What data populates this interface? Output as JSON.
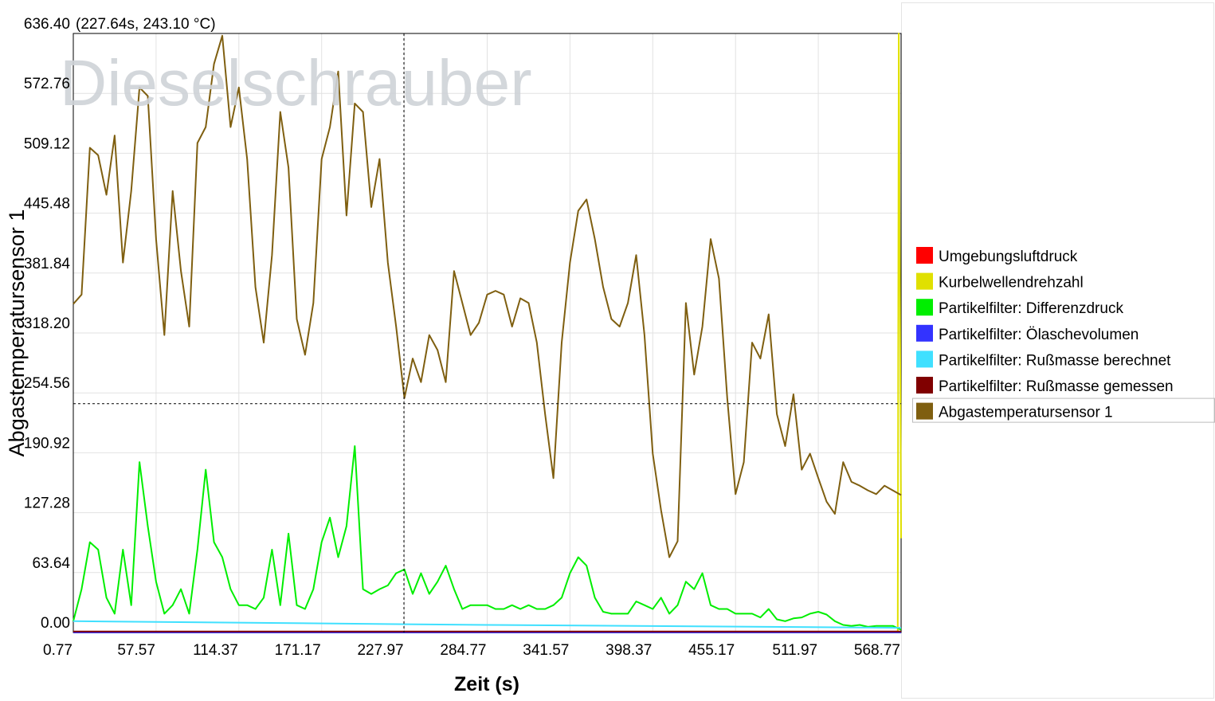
{
  "chart_data": {
    "type": "line",
    "watermark": "Dieselschrauber",
    "cursor_readout": "(227.64s, 243.10 °C)",
    "crosshair": {
      "x": 227.64,
      "y": 243.1
    },
    "xlabel": "Zeit (s)",
    "ylabel": "Abgastemperatursensor 1",
    "xlim": [
      0.77,
      568.77
    ],
    "ylim": [
      0,
      636.4
    ],
    "xticks": [
      0.77,
      57.57,
      114.37,
      171.17,
      227.97,
      284.77,
      341.57,
      398.37,
      455.17,
      511.97,
      568.77
    ],
    "yticks": [
      {
        "value": 0,
        "label": "0.00"
      },
      63.64,
      127.28,
      190.92,
      254.56,
      {
        "value": 318.2,
        "label": "318.20"
      },
      381.84,
      445.48,
      509.12,
      572.76,
      {
        "value": 636.4,
        "label": "636.40"
      }
    ],
    "grid": true,
    "legend": "right",
    "x": [
      0.77,
      6.45,
      12.13,
      17.81,
      23.49,
      29.17,
      34.85,
      40.53,
      46.21,
      51.89,
      57.57,
      63.25,
      68.93,
      74.61,
      80.29,
      85.97,
      91.65,
      97.33,
      103.01,
      108.69,
      114.37,
      120.05,
      125.73,
      131.41,
      137.09,
      142.77,
      148.45,
      154.13,
      159.81,
      165.49,
      171.17,
      176.85,
      182.53,
      188.21,
      193.89,
      199.57,
      205.25,
      210.93,
      216.61,
      222.29,
      227.97,
      233.65,
      239.33,
      245.01,
      250.69,
      256.37,
      262.05,
      267.73,
      273.41,
      279.09,
      284.77,
      290.45,
      296.13,
      301.81,
      307.49,
      313.17,
      318.85,
      324.53,
      330.21,
      335.89,
      341.57,
      347.25,
      352.93,
      358.61,
      364.29,
      369.97,
      375.65,
      381.33,
      387.01,
      392.69,
      398.37,
      404.05,
      409.73,
      415.41,
      421.09,
      426.77,
      432.45,
      438.13,
      443.81,
      449.49,
      455.17,
      460.85,
      466.53,
      472.21,
      477.89,
      483.57,
      489.25,
      494.93,
      500.61,
      506.29,
      511.97,
      517.65,
      523.33,
      529.01,
      534.69,
      540.37,
      546.05,
      551.73,
      557.41,
      563.09,
      568.77
    ],
    "series": [
      {
        "name": "Umgebungsluftdruck",
        "color": "#ff0000",
        "x": [
          0.77,
          568.77
        ],
        "values": [
          0,
          0
        ]
      },
      {
        "name": "Kurbelwellendrehzahl",
        "color": "#e0e000",
        "x": [
          0.77,
          566.5,
          567.2,
          568.77
        ],
        "values": [
          0,
          0,
          636.4,
          100
        ]
      },
      {
        "name": "Partikelfilter: Differenzdruck",
        "color": "#00ee00",
        "values": [
          12,
          46,
          96,
          88,
          37,
          20,
          88,
          29,
          181,
          113,
          54,
          20,
          29,
          46,
          20,
          88,
          173,
          96,
          80,
          46,
          29,
          29,
          25,
          37,
          88,
          29,
          105,
          29,
          25,
          46,
          96,
          122,
          80,
          113,
          198,
          46,
          41,
          46,
          50,
          63,
          67,
          41,
          63,
          41,
          54,
          71,
          46,
          25,
          29,
          29,
          29,
          25,
          25,
          29,
          25,
          29,
          25,
          25,
          29,
          37,
          63,
          80,
          71,
          37,
          22,
          20,
          20,
          20,
          33,
          29,
          25,
          37,
          20,
          29,
          54,
          46,
          63,
          29,
          25,
          25,
          20,
          20,
          20,
          16,
          25,
          14,
          12,
          15,
          16,
          20,
          22,
          19,
          12,
          8,
          7,
          8,
          6,
          7,
          7,
          7,
          3
        ]
      },
      {
        "name": "Partikelfilter: Ölaschevolumen",
        "color": "#3333ff",
        "x": [
          0.77,
          568.77
        ],
        "values": [
          0,
          0
        ]
      },
      {
        "name": "Partikelfilter: Rußmasse berechnet",
        "color": "#40e0ff",
        "x": [
          0.77,
          284.77,
          568.77
        ],
        "values": [
          12,
          8,
          5
        ]
      },
      {
        "name": "Partikelfilter: Rußmasse gemessen",
        "color": "#800000",
        "x": [
          0.77,
          568.77
        ],
        "values": [
          1,
          1
        ]
      },
      {
        "name": "Abgastemperatursensor 1",
        "color": "#7f5f10",
        "values": [
          349,
          359,
          515,
          507,
          465,
          528,
          393,
          469,
          579,
          570,
          418,
          316,
          469,
          384,
          325,
          520,
          537,
          604,
          634,
          537,
          579,
          503,
          367,
          308,
          401,
          553,
          494,
          333,
          295,
          350,
          503,
          537,
          596,
          443,
          562,
          553,
          452,
          503,
          393,
          325,
          249,
          291,
          266,
          316,
          300,
          266,
          384,
          350,
          316,
          329,
          359,
          363,
          359,
          325,
          355,
          350,
          308,
          232,
          164,
          308,
          393,
          448,
          460,
          418,
          367,
          333,
          325,
          350,
          401,
          316,
          190,
          130,
          80,
          97,
          350,
          274,
          325,
          418,
          376,
          249,
          147,
          181,
          308,
          291,
          338,
          232,
          198,
          253,
          173,
          190,
          164,
          139,
          126,
          181,
          160,
          156,
          151,
          147,
          156,
          151,
          146
        ]
      }
    ]
  }
}
